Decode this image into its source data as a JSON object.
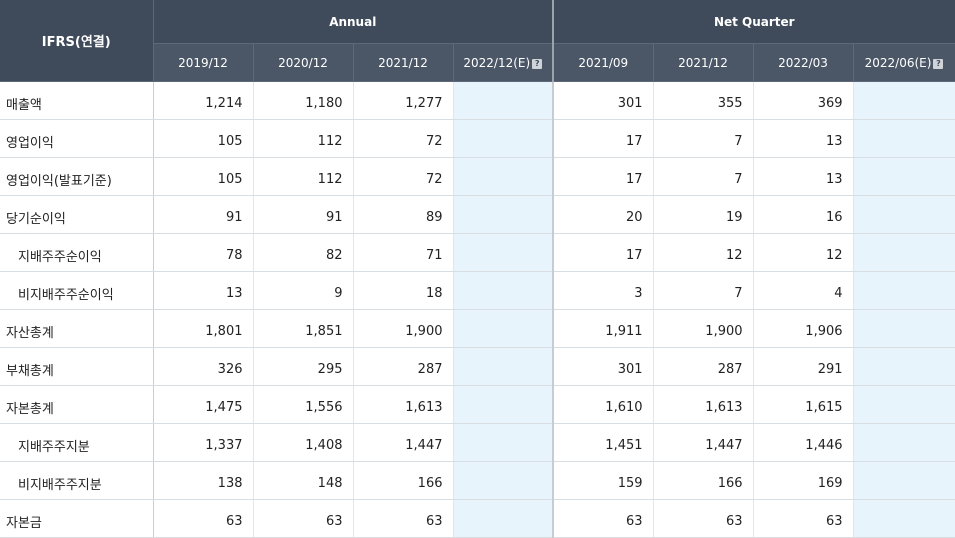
{
  "header": {
    "corner": "IFRS(연결)",
    "annual_label": "Annual",
    "quarter_label": "Net Quarter",
    "estimate_icon": "?",
    "annual_periods": [
      "2019/12",
      "2020/12",
      "2021/12",
      "2022/12(E)"
    ],
    "quarter_periods": [
      "2021/09",
      "2021/12",
      "2022/03",
      "2022/06(E)"
    ]
  },
  "rows": [
    {
      "label": "매출액",
      "sub": false,
      "annual": [
        "1,214",
        "1,180",
        "1,277",
        ""
      ],
      "quarter": [
        "301",
        "355",
        "369",
        ""
      ]
    },
    {
      "label": "영업이익",
      "sub": false,
      "annual": [
        "105",
        "112",
        "72",
        ""
      ],
      "quarter": [
        "17",
        "7",
        "13",
        ""
      ]
    },
    {
      "label": "영업이익(발표기준)",
      "sub": false,
      "annual": [
        "105",
        "112",
        "72",
        ""
      ],
      "quarter": [
        "17",
        "7",
        "13",
        ""
      ]
    },
    {
      "label": "당기순이익",
      "sub": false,
      "annual": [
        "91",
        "91",
        "89",
        ""
      ],
      "quarter": [
        "20",
        "19",
        "16",
        ""
      ]
    },
    {
      "label": "지배주주순이익",
      "sub": true,
      "annual": [
        "78",
        "82",
        "71",
        ""
      ],
      "quarter": [
        "17",
        "12",
        "12",
        ""
      ]
    },
    {
      "label": "비지배주주순이익",
      "sub": true,
      "annual": [
        "13",
        "9",
        "18",
        ""
      ],
      "quarter": [
        "3",
        "7",
        "4",
        ""
      ]
    },
    {
      "label": "자산총계",
      "sub": false,
      "annual": [
        "1,801",
        "1,851",
        "1,900",
        ""
      ],
      "quarter": [
        "1,911",
        "1,900",
        "1,906",
        ""
      ]
    },
    {
      "label": "부채총계",
      "sub": false,
      "annual": [
        "326",
        "295",
        "287",
        ""
      ],
      "quarter": [
        "301",
        "287",
        "291",
        ""
      ]
    },
    {
      "label": "자본총계",
      "sub": false,
      "annual": [
        "1,475",
        "1,556",
        "1,613",
        ""
      ],
      "quarter": [
        "1,610",
        "1,613",
        "1,615",
        ""
      ]
    },
    {
      "label": "지배주주지분",
      "sub": true,
      "annual": [
        "1,337",
        "1,408",
        "1,447",
        ""
      ],
      "quarter": [
        "1,451",
        "1,447",
        "1,446",
        ""
      ]
    },
    {
      "label": "비지배주주지분",
      "sub": true,
      "annual": [
        "138",
        "148",
        "166",
        ""
      ],
      "quarter": [
        "159",
        "166",
        "169",
        ""
      ]
    },
    {
      "label": "자본금",
      "sub": false,
      "annual": [
        "63",
        "63",
        "63",
        ""
      ],
      "quarter": [
        "63",
        "63",
        "63",
        ""
      ]
    }
  ]
}
